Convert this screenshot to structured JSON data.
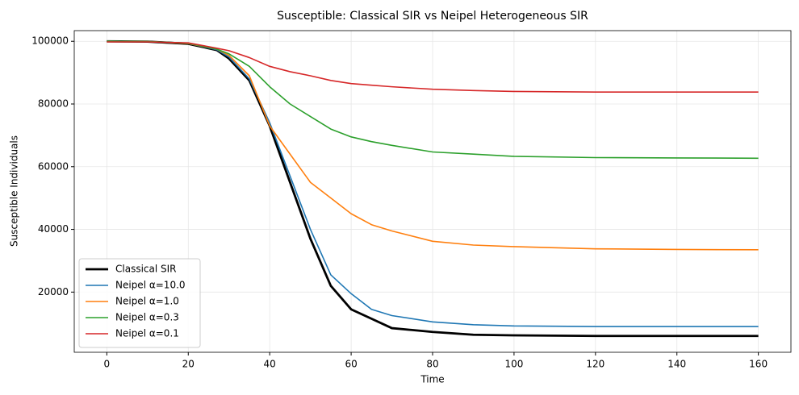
{
  "chart_data": {
    "type": "line",
    "title": "Susceptible: Classical SIR vs Neipel Heterogeneous SIR",
    "x_label": "Time",
    "y_label": "Susceptible Individuals",
    "x": [
      0,
      10,
      20,
      27,
      30,
      35,
      40,
      45,
      50,
      55,
      60,
      65,
      70,
      80,
      90,
      100,
      120,
      140,
      160
    ],
    "series": [
      {
        "name": "Classical SIR",
        "color": "#000000",
        "line_width": 2.8,
        "values": [
          100000,
          99900,
          99200,
          97200,
          94500,
          87500,
          73000,
          55000,
          37000,
          22000,
          14500,
          11500,
          8500,
          7300,
          6400,
          6200,
          6000,
          6000,
          6000
        ]
      },
      {
        "name": "Neipel α=10.0",
        "color": "#1f77b4",
        "line_width": 1.6,
        "values": [
          100000,
          99900,
          99300,
          97300,
          95000,
          88000,
          74000,
          57000,
          40000,
          25500,
          19500,
          14500,
          12500,
          10500,
          9600,
          9200,
          9000,
          9000,
          9000
        ]
      },
      {
        "name": "Neipel α=1.0",
        "color": "#ff7f0e",
        "line_width": 1.6,
        "values": [
          100000,
          99900,
          99300,
          97500,
          95500,
          89000,
          73000,
          64000,
          55000,
          50000,
          45000,
          41500,
          39500,
          36200,
          35000,
          34500,
          33800,
          33600,
          33500
        ]
      },
      {
        "name": "Neipel α=0.3",
        "color": "#2ca02c",
        "line_width": 1.6,
        "values": [
          100000,
          99900,
          99400,
          97500,
          96000,
          92000,
          85500,
          80000,
          76000,
          72000,
          69500,
          68000,
          66800,
          64700,
          64000,
          63300,
          62900,
          62800,
          62700
        ]
      },
      {
        "name": "Neipel α=0.1",
        "color": "#d62728",
        "line_width": 1.6,
        "values": [
          99800,
          99800,
          99500,
          97800,
          97000,
          94800,
          92000,
          90300,
          89000,
          87500,
          86500,
          86000,
          85500,
          84700,
          84300,
          84000,
          83800,
          83800,
          83800
        ]
      }
    ],
    "xlim": [
      -8,
      168
    ],
    "ylim": [
      800,
      103400
    ],
    "xticks": [
      0,
      20,
      40,
      60,
      80,
      100,
      120,
      140,
      160
    ],
    "yticks": [
      20000,
      40000,
      60000,
      80000,
      100000
    ],
    "grid": true,
    "legend": "lower left"
  }
}
